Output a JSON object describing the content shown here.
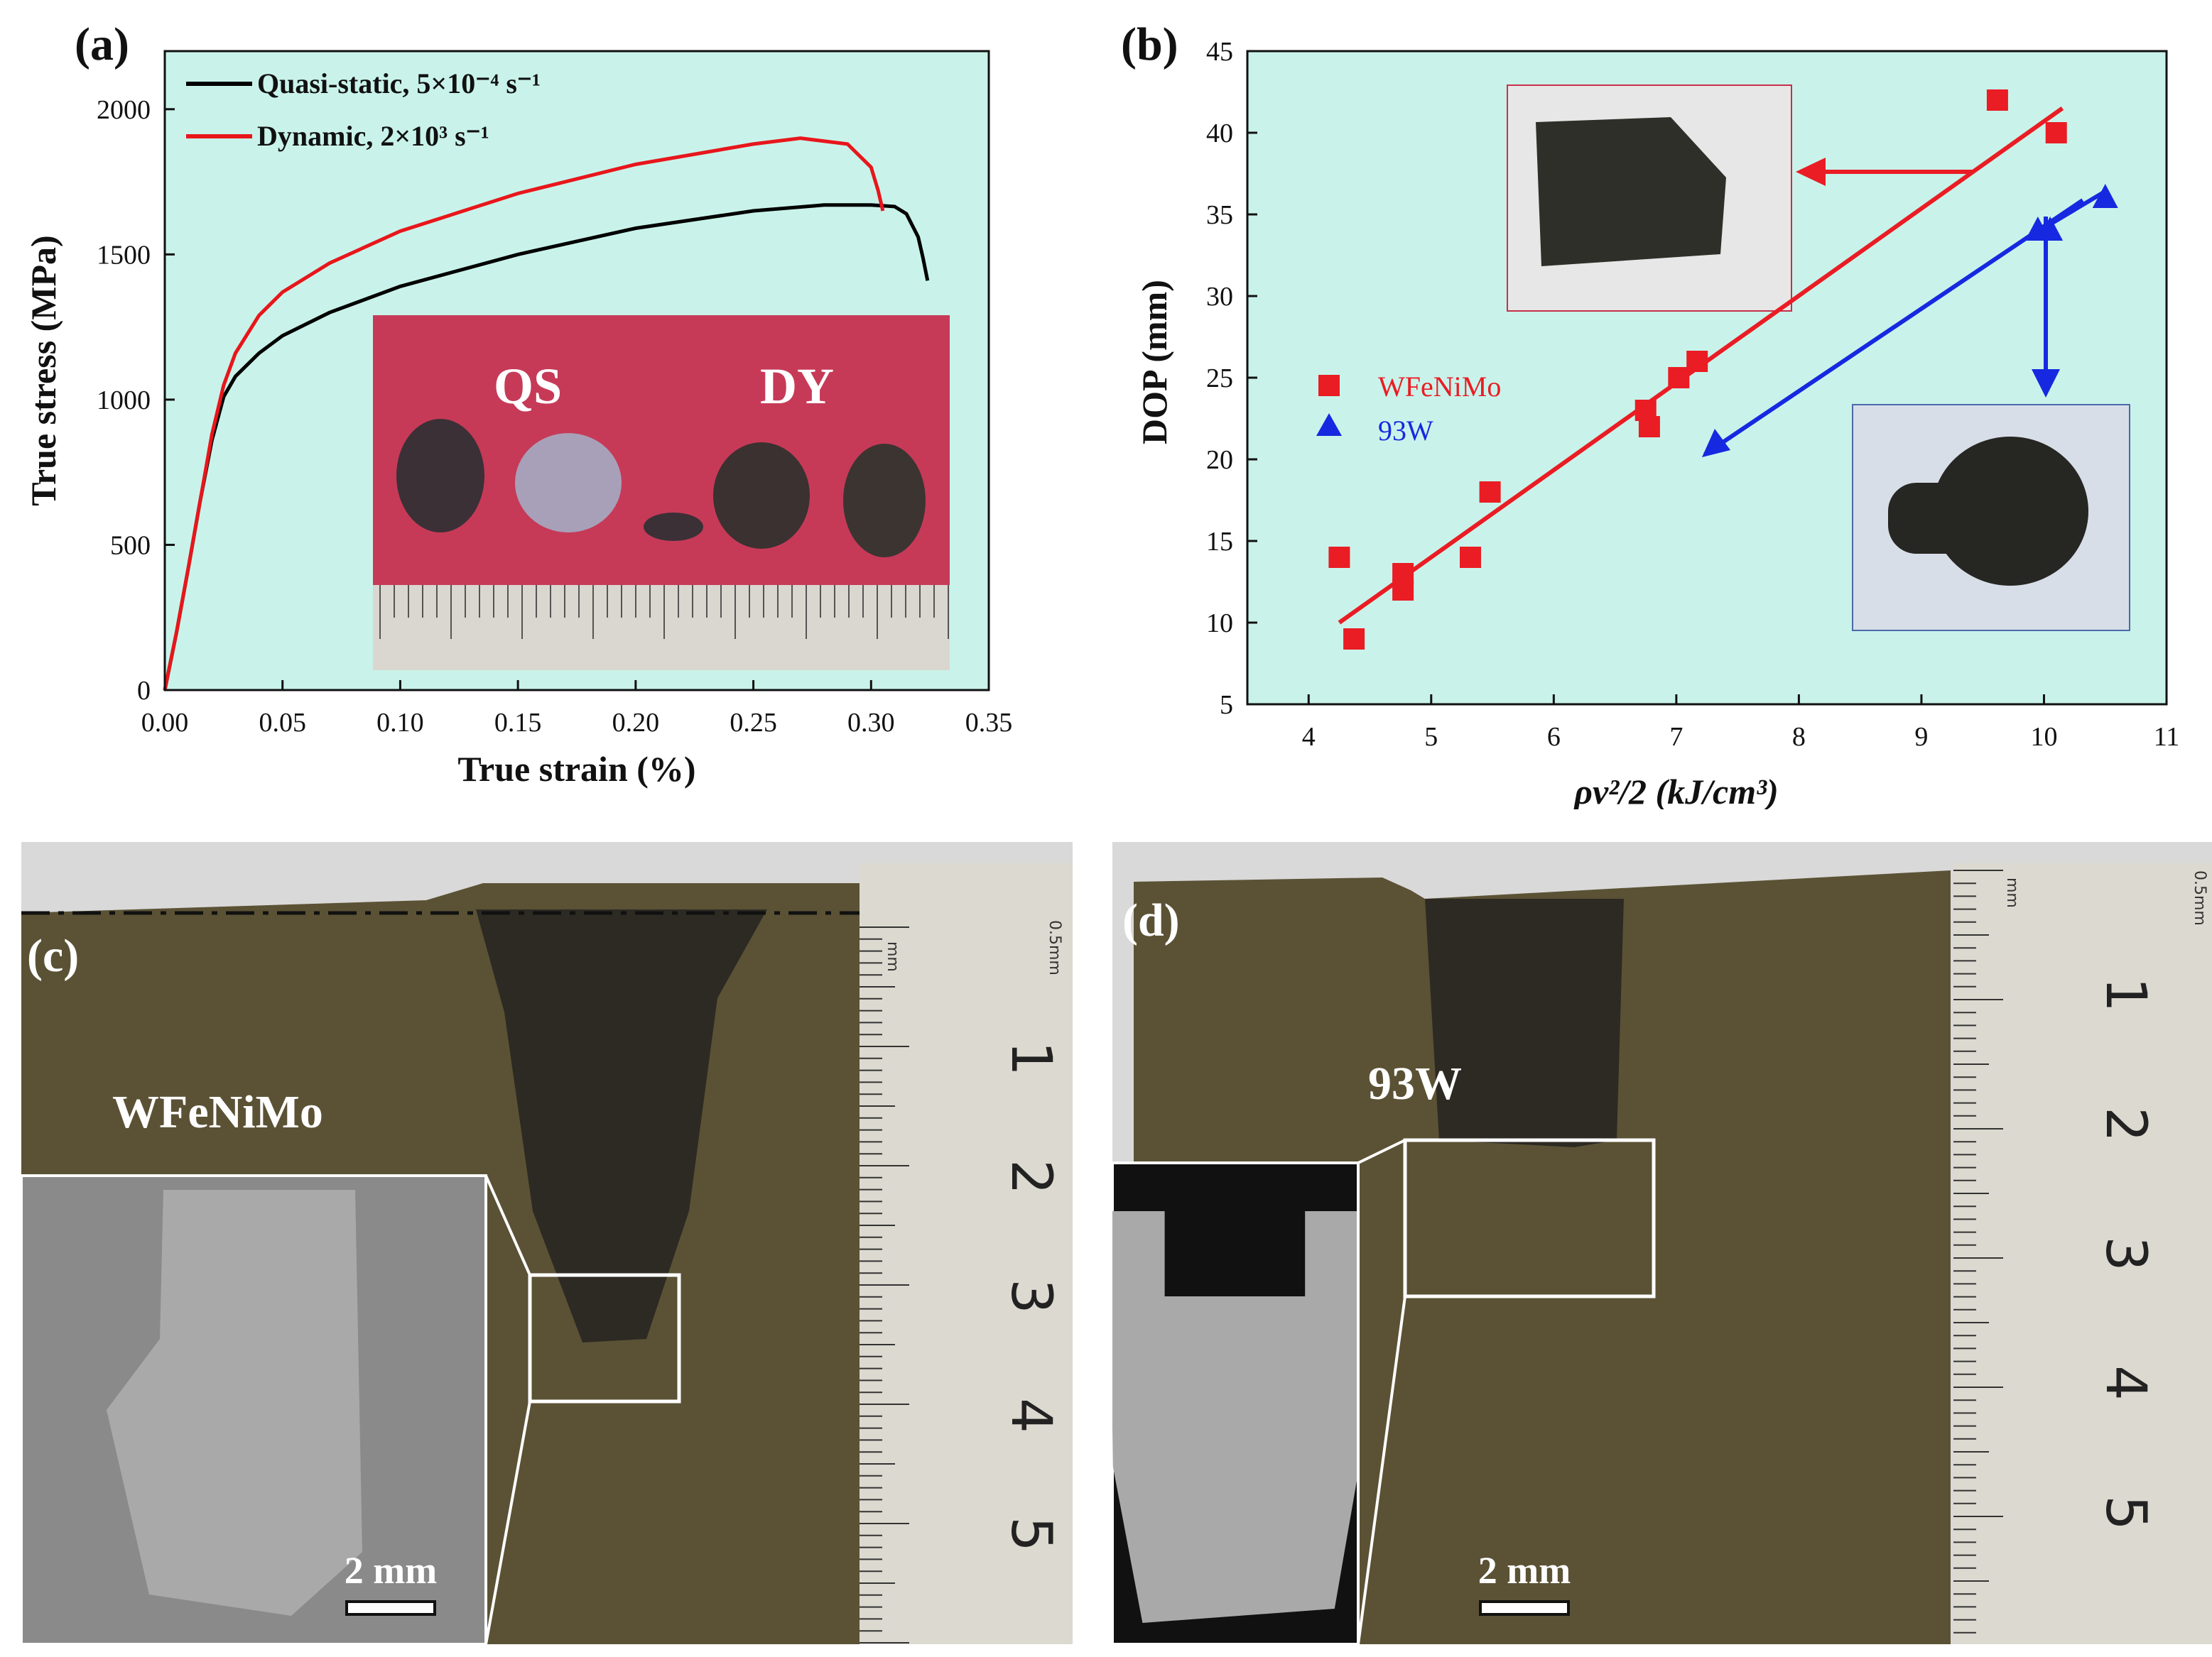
{
  "colors": {
    "plot_bg": "#c9f3ea",
    "quasi_static": "#000000",
    "dynamic": "#e8161b",
    "wfenimo": "#ea1c24",
    "w93": "#1629e0",
    "inset_red": "#c8304a",
    "ruler": "#d9d7cf",
    "target": "#5b5235"
  },
  "chart_data": [
    {
      "panel": "(a)",
      "type": "line",
      "xlabel": "True strain (%)",
      "ylabel": "True stress (MPa)",
      "xlim": [
        0,
        0.35
      ],
      "ylim": [
        0,
        2200
      ],
      "xticks": [
        0.0,
        0.05,
        0.1,
        0.15,
        0.2,
        0.25,
        0.3,
        0.35
      ],
      "xtick_labels": [
        "0.00",
        "0.05",
        "0.10",
        "0.15",
        "0.20",
        "0.25",
        "0.30",
        "0.35"
      ],
      "yticks": [
        0,
        500,
        1000,
        1500,
        2000
      ],
      "ytick_labels": [
        "0",
        "500",
        "1000",
        "1500",
        "2000"
      ],
      "legend_position": "top-left",
      "series": [
        {
          "name": "Quasi-static, 5×10⁻⁴ s⁻¹",
          "color": "#000000",
          "x": [
            0,
            0.005,
            0.01,
            0.015,
            0.02,
            0.025,
            0.03,
            0.04,
            0.05,
            0.07,
            0.1,
            0.15,
            0.2,
            0.25,
            0.28,
            0.3,
            0.31,
            0.315,
            0.32,
            0.322,
            0.324
          ],
          "y": [
            0,
            200,
            420,
            650,
            860,
            1010,
            1080,
            1160,
            1220,
            1300,
            1390,
            1500,
            1590,
            1650,
            1670,
            1670,
            1665,
            1640,
            1560,
            1490,
            1410
          ]
        },
        {
          "name": "Dynamic, 2×10³ s⁻¹",
          "color": "#e8161b",
          "x": [
            0,
            0.005,
            0.01,
            0.015,
            0.02,
            0.025,
            0.03,
            0.04,
            0.05,
            0.07,
            0.1,
            0.15,
            0.2,
            0.25,
            0.27,
            0.29,
            0.3,
            0.303,
            0.305
          ],
          "y": [
            0,
            200,
            420,
            650,
            880,
            1050,
            1160,
            1290,
            1370,
            1470,
            1580,
            1710,
            1810,
            1880,
            1900,
            1880,
            1800,
            1720,
            1650
          ]
        }
      ],
      "inset_labels": [
        "QS",
        "DY"
      ]
    },
    {
      "panel": "(b)",
      "type": "scatter",
      "xlabel": "ρv²/2 (kJ/cm³)",
      "ylabel": "DOP (mm)",
      "xlim": [
        3.5,
        11
      ],
      "ylim": [
        5,
        45
      ],
      "xticks": [
        4,
        5,
        6,
        7,
        8,
        9,
        10,
        11
      ],
      "xtick_labels": [
        "4",
        "5",
        "6",
        "7",
        "8",
        "9",
        "10",
        "11"
      ],
      "yticks": [
        5,
        10,
        15,
        20,
        25,
        30,
        35,
        40,
        45
      ],
      "ytick_labels": [
        "5",
        "10",
        "15",
        "20",
        "25",
        "30",
        "35",
        "40",
        "45"
      ],
      "legend_position": "center-left",
      "series": [
        {
          "name": "WFeNiMo",
          "marker": "square",
          "color": "#ea1c24",
          "x": [
            4.25,
            4.37,
            4.77,
            4.77,
            5.32,
            5.48,
            6.75,
            6.78,
            7.02,
            7.17,
            9.62,
            10.1
          ],
          "y": [
            14,
            9,
            13,
            12,
            14,
            18,
            23,
            22,
            25,
            26,
            42,
            40
          ],
          "fit": {
            "x": [
              4.25,
              10.15
            ],
            "y": [
              10,
              41.5
            ]
          }
        },
        {
          "name": "93W",
          "marker": "triangle",
          "color": "#1629e0",
          "x": [
            9.95,
            10.05,
            10.5
          ],
          "y": [
            34,
            34,
            36
          ],
          "fit": {
            "x": [
              9.85,
              10.52
            ],
            "y": [
              33.5,
              36.5
            ]
          }
        }
      ]
    }
  ],
  "panels": {
    "a": {
      "letter": "(a)"
    },
    "b": {
      "letter": "(b)"
    },
    "c": {
      "letter": "(c)",
      "material": "WFeNiMo",
      "scale_bar": "2 mm",
      "ruler_labels": [
        "1",
        "2",
        "3",
        "4",
        "5"
      ],
      "ruler_unit": "mm",
      "ruler_note": "0.5mm"
    },
    "d": {
      "letter": "(d)",
      "material": "93W",
      "scale_bar": "2 mm",
      "ruler_labels": [
        "1",
        "2",
        "3",
        "4",
        "5"
      ],
      "ruler_unit": "mm",
      "ruler_note": "0.5mm"
    }
  }
}
